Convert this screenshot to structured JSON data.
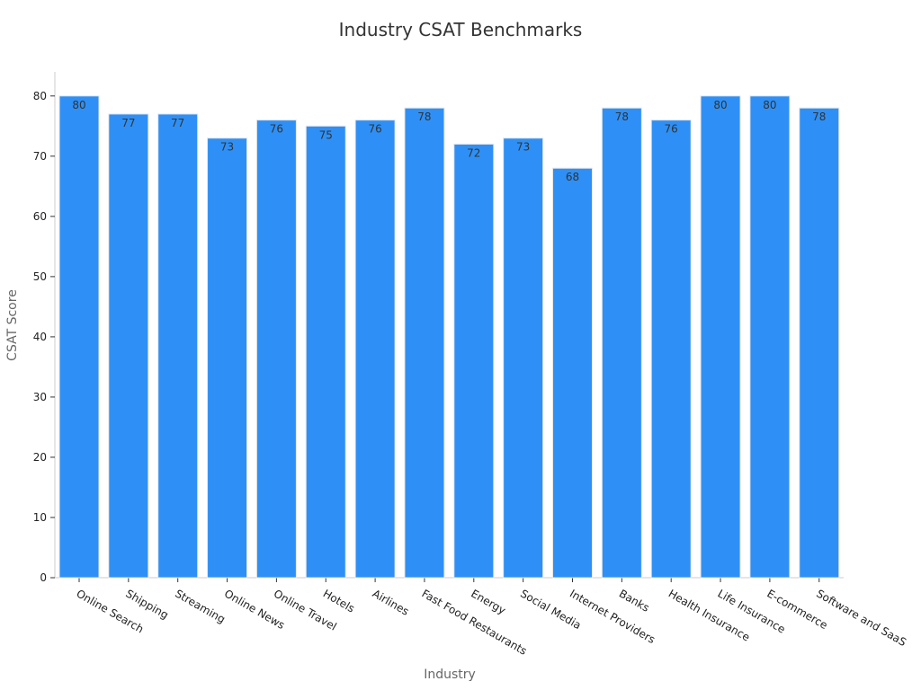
{
  "chart_data": {
    "type": "bar",
    "title": "Industry CSAT Benchmarks",
    "xlabel": "Industry",
    "ylabel": "CSAT Score",
    "categories": [
      "Online Search",
      "Shipping",
      "Streaming",
      "Online News",
      "Online Travel",
      "Hotels",
      "Airlines",
      "Fast Food Restaurants",
      "Energy",
      "Social Media",
      "Internet Providers",
      "Banks",
      "Health Insurance",
      "Life Insurance",
      "E-commerce",
      "Software and SaaS"
    ],
    "values": [
      80,
      77,
      77,
      73,
      76,
      75,
      76,
      78,
      72,
      73,
      68,
      78,
      76,
      80,
      80,
      78
    ],
    "ylim": [
      0,
      84
    ],
    "yticks": [
      0,
      10,
      20,
      30,
      40,
      50,
      60,
      70,
      80
    ],
    "grid": false,
    "legend": "none",
    "bar_color": "#2E90F6",
    "data_labels": true
  }
}
